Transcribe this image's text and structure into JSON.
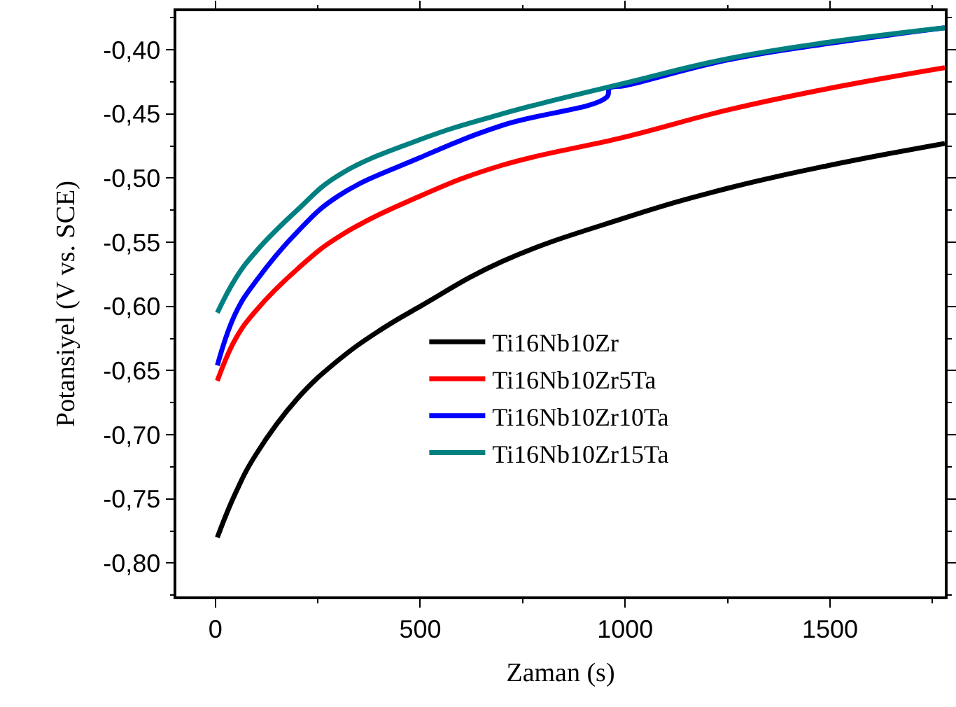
{
  "chart_data": {
    "type": "line",
    "xlabel": "Zaman (s)",
    "ylabel": "Potansiyel (V vs. SCE)",
    "xlim": [
      -95,
      1780
    ],
    "ylim": [
      -0.826,
      -0.37
    ],
    "xticks": [
      0,
      500,
      1000,
      1500
    ],
    "yticks": [
      {
        "value": -0.8,
        "label": "-0,80"
      },
      {
        "value": -0.75,
        "label": "-0,75"
      },
      {
        "value": -0.7,
        "label": "-0,70"
      },
      {
        "value": -0.65,
        "label": "-0,65"
      },
      {
        "value": -0.6,
        "label": "-0,60"
      },
      {
        "value": -0.55,
        "label": "-0,55"
      },
      {
        "value": -0.5,
        "label": "-0,50"
      },
      {
        "value": -0.45,
        "label": "-0,45"
      },
      {
        "value": -0.4,
        "label": "-0,40"
      }
    ],
    "legend": "center",
    "marker": "none",
    "line_style": "solid",
    "series": [
      {
        "name": "Ti16Nb10Zr",
        "color": "#000000",
        "x": [
          5,
          50,
          100,
          200,
          300,
          400,
          500,
          700,
          1000,
          1250,
          1500,
          1780
        ],
        "values": [
          -0.78,
          -0.745,
          -0.715,
          -0.672,
          -0.642,
          -0.619,
          -0.6,
          -0.565,
          -0.531,
          -0.508,
          -0.49,
          -0.473
        ]
      },
      {
        "name": "Ti16Nb10Zr5Ta",
        "color": "#ff0000",
        "x": [
          5,
          50,
          100,
          200,
          300,
          500,
          700,
          1000,
          1250,
          1500,
          1780
        ],
        "values": [
          -0.658,
          -0.625,
          -0.603,
          -0.571,
          -0.546,
          -0.514,
          -0.49,
          -0.468,
          -0.447,
          -0.43,
          -0.414
        ]
      },
      {
        "name": "Ti16Nb10Zr10Ta",
        "color": "#0000ff",
        "x": [
          5,
          50,
          100,
          200,
          300,
          500,
          700,
          955,
          962,
          1000,
          1250,
          1500,
          1780
        ],
        "values": [
          -0.646,
          -0.605,
          -0.58,
          -0.542,
          -0.514,
          -0.484,
          -0.459,
          -0.437,
          -0.43,
          -0.428,
          -0.408,
          -0.395,
          -0.383
        ]
      },
      {
        "name": "Ti16Nb10Zr15Ta",
        "color": "#008080",
        "x": [
          5,
          50,
          100,
          200,
          300,
          500,
          700,
          1000,
          1250,
          1500,
          1780
        ],
        "values": [
          -0.605,
          -0.578,
          -0.557,
          -0.525,
          -0.498,
          -0.47,
          -0.45,
          -0.426,
          -0.407,
          -0.394,
          -0.383
        ]
      }
    ]
  }
}
